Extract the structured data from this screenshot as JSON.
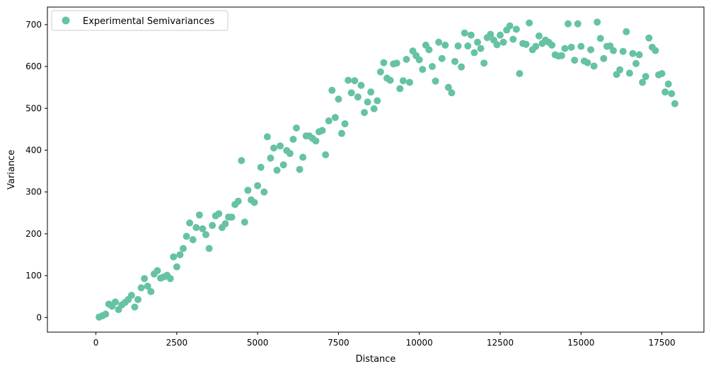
{
  "chart_data": {
    "type": "scatter",
    "title": "",
    "xlabel": "Distance",
    "ylabel": "Variance",
    "xlim": [
      -1500,
      18800
    ],
    "ylim": [
      -35,
      742
    ],
    "x_ticks": [
      0,
      2500,
      5000,
      7500,
      10000,
      12500,
      15000,
      17500
    ],
    "x_tick_labels": [
      "0",
      "2500",
      "5000",
      "7500",
      "10000",
      "12500",
      "15000",
      "17500"
    ],
    "y_ticks": [
      0,
      100,
      200,
      300,
      400,
      500,
      600,
      700
    ],
    "y_tick_labels": [
      "0",
      "100",
      "200",
      "300",
      "400",
      "500",
      "600",
      "700"
    ],
    "grid": false,
    "legend": {
      "position": "top-left",
      "entries": [
        "Experimental Semivariances"
      ]
    },
    "marker_color": "#66c2a5",
    "series": [
      {
        "name": "Experimental Semivariances",
        "x": [
          100,
          200,
          300,
          400,
          500,
          600,
          700,
          800,
          900,
          1000,
          1100,
          1200,
          1300,
          1400,
          1500,
          1600,
          1700,
          1800,
          1900,
          2000,
          2100,
          2200,
          2300,
          2400,
          2500,
          2600,
          2700,
          2800,
          2900,
          3000,
          3100,
          3200,
          3300,
          3400,
          3500,
          3600,
          3700,
          3800,
          3900,
          4000,
          4100,
          4200,
          4300,
          4400,
          4500,
          4600,
          4700,
          4800,
          4900,
          5000,
          5100,
          5200,
          5300,
          5400,
          5500,
          5600,
          5700,
          5800,
          5900,
          6000,
          6100,
          6200,
          6300,
          6400,
          6500,
          6600,
          6700,
          6800,
          6900,
          7000,
          7100,
          7200,
          7300,
          7400,
          7500,
          7600,
          7700,
          7800,
          7900,
          8000,
          8100,
          8200,
          8300,
          8400,
          8500,
          8600,
          8700,
          8800,
          8900,
          9000,
          9100,
          9200,
          9300,
          9400,
          9500,
          9600,
          9700,
          9800,
          9900,
          10000,
          10100,
          10200,
          10300,
          10400,
          10500,
          10600,
          10700,
          10800,
          10900,
          11000,
          11100,
          11200,
          11300,
          11400,
          11500,
          11600,
          11700,
          11800,
          11900,
          12000,
          12100,
          12200,
          12300,
          12400,
          12500,
          12600,
          12700,
          12800,
          12900,
          13000,
          13100,
          13200,
          13300,
          13400,
          13500,
          13600,
          13700,
          13800,
          13900,
          14000,
          14100,
          14200,
          14300,
          14400,
          14500,
          14600,
          14700,
          14800,
          14900,
          15000,
          15100,
          15200,
          15300,
          15400,
          15500,
          15600,
          15700,
          15800,
          15900,
          16000,
          16100,
          16200,
          16300,
          16400,
          16500,
          16600,
          16700,
          16800,
          16900,
          17000,
          17100,
          17200,
          17300,
          17400,
          17500,
          17600,
          17700,
          17800,
          17900
        ],
        "y": [
          1,
          4,
          8,
          32,
          27,
          37,
          19,
          30,
          36,
          43,
          53,
          25,
          43,
          71,
          93,
          75,
          62,
          104,
          112,
          94,
          97,
          101,
          93,
          145,
          121,
          150,
          165,
          194,
          226,
          186,
          215,
          245,
          212,
          198,
          165,
          220,
          243,
          248,
          215,
          224,
          240,
          240,
          270,
          278,
          375,
          228,
          304,
          281,
          275,
          315,
          359,
          300,
          432,
          381,
          405,
          352,
          410,
          365,
          399,
          392,
          426,
          453,
          354,
          383,
          434,
          434,
          428,
          422,
          444,
          447,
          389,
          470,
          543,
          478,
          522,
          440,
          463,
          567,
          537,
          566,
          527,
          555,
          490,
          515,
          539,
          499,
          518,
          587,
          609,
          572,
          567,
          606,
          608,
          547,
          566,
          617,
          562,
          637,
          626,
          616,
          593,
          651,
          640,
          600,
          565,
          658,
          619,
          651,
          550,
          537,
          612,
          649,
          599,
          680,
          649,
          675,
          633,
          658,
          643,
          608,
          669,
          677,
          663,
          652,
          675,
          658,
          687,
          697,
          665,
          689,
          583,
          655,
          653,
          704,
          640,
          648,
          673,
          655,
          663,
          658,
          651,
          628,
          625,
          626,
          643,
          702,
          646,
          615,
          702,
          648,
          613,
          609,
          640,
          601,
          706,
          667,
          619,
          648,
          649,
          638,
          581,
          592,
          636,
          683,
          584,
          631,
          607,
          628,
          562,
          576,
          668,
          646,
          638,
          580,
          583,
          539,
          558,
          535,
          511
        ]
      }
    ]
  }
}
